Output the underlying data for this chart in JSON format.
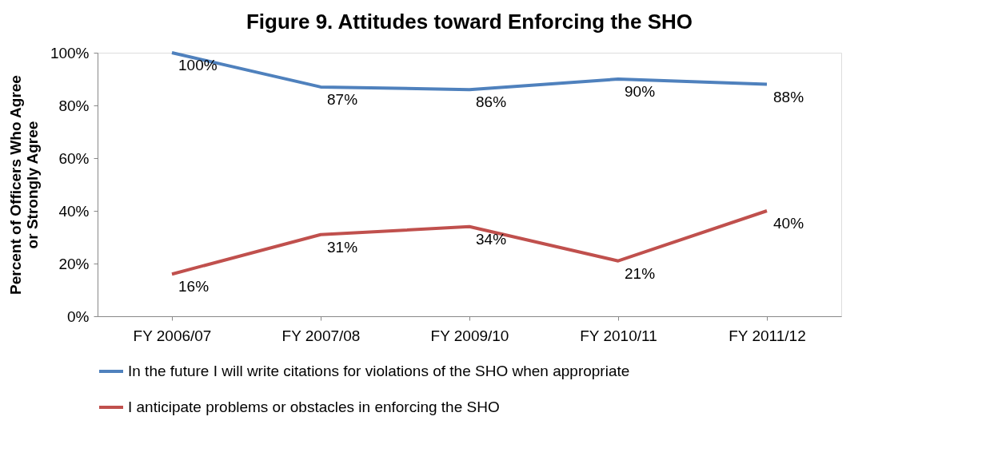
{
  "chart_data": {
    "type": "line",
    "title": "Figure 9. Attitudes toward Enforcing the SHO",
    "ylabel": "Percent of Officers Who Agree or Strongly Agree",
    "categories": [
      "FY 2006/07",
      "FY 2007/08",
      "FY 2009/10",
      "FY 2010/11",
      "FY 2011/12"
    ],
    "series": [
      {
        "name": "In the future I will write citations for violations of the SHO when appropriate",
        "color": "#4f81bd",
        "values": [
          100,
          87,
          86,
          90,
          88
        ],
        "value_labels": [
          "100%",
          "87%",
          "86%",
          "90%",
          "88%"
        ]
      },
      {
        "name": "I anticipate problems or obstacles in enforcing the SHO",
        "color": "#c0504d",
        "values": [
          16,
          31,
          34,
          21,
          40
        ],
        "value_labels": [
          "16%",
          "31%",
          "34%",
          "21%",
          "40%"
        ]
      }
    ],
    "ylim": [
      0,
      100
    ],
    "yticks": [
      {
        "value": 0,
        "label": "0%"
      },
      {
        "value": 20,
        "label": "20%"
      },
      {
        "value": 40,
        "label": "40%"
      },
      {
        "value": 60,
        "label": "60%"
      },
      {
        "value": 80,
        "label": "80%"
      },
      {
        "value": 100,
        "label": "100%"
      }
    ],
    "grid": false,
    "legend": "bottom",
    "marker": "none",
    "line_style": "solid"
  }
}
